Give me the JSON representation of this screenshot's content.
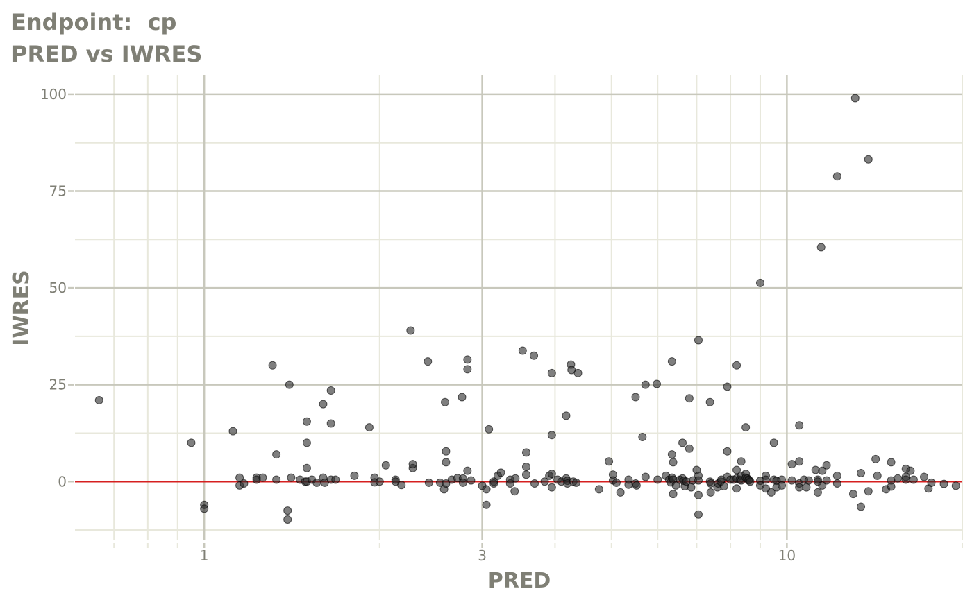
{
  "title": "Endpoint:  cp",
  "subtitle": "PRED vs IWRES",
  "chart_data": {
    "type": "scatter",
    "xlabel": "PRED",
    "ylabel": "IWRES",
    "x_scale": "log10",
    "xlim": [
      0.6,
      20
    ],
    "ylim": [
      -15,
      105
    ],
    "x_ticks": [
      1,
      3,
      10
    ],
    "x_tick_labels": [
      "1",
      "3",
      "10"
    ],
    "y_ticks": [
      0,
      25,
      50,
      75,
      100
    ],
    "y_tick_labels": [
      "0",
      "25",
      "50",
      "75",
      "100"
    ],
    "reference_line": {
      "y": 0,
      "color": "#d62020"
    },
    "grid": true,
    "colors": {
      "points": "#2a2a2a",
      "major_grid": "#c8c8bc",
      "minor_grid": "#e8e8dc",
      "text": "#7f7f75"
    },
    "points": [
      [
        0.66,
        21
      ],
      [
        0.95,
        10
      ],
      [
        1.0,
        -6
      ],
      [
        1.0,
        -7
      ],
      [
        1.12,
        13
      ],
      [
        1.15,
        1
      ],
      [
        1.15,
        -1
      ],
      [
        1.17,
        -0.5
      ],
      [
        1.23,
        1
      ],
      [
        1.23,
        0.5
      ],
      [
        1.26,
        1
      ],
      [
        1.31,
        30
      ],
      [
        1.33,
        7
      ],
      [
        1.33,
        0.5
      ],
      [
        1.39,
        -7.5
      ],
      [
        1.39,
        -9.8
      ],
      [
        1.4,
        25
      ],
      [
        1.41,
        1
      ],
      [
        1.46,
        0.5
      ],
      [
        1.49,
        0
      ],
      [
        1.5,
        15.5
      ],
      [
        1.5,
        10
      ],
      [
        1.5,
        3.5
      ],
      [
        1.5,
        0
      ],
      [
        1.53,
        0.5
      ],
      [
        1.56,
        -0.3
      ],
      [
        1.6,
        20
      ],
      [
        1.6,
        1
      ],
      [
        1.61,
        -0.3
      ],
      [
        1.65,
        23.5
      ],
      [
        1.65,
        15
      ],
      [
        1.65,
        0.5
      ],
      [
        1.68,
        0.5
      ],
      [
        1.81,
        1.5
      ],
      [
        1.92,
        14
      ],
      [
        1.96,
        1
      ],
      [
        1.96,
        -0.2
      ],
      [
        2.0,
        0
      ],
      [
        2.05,
        4.2
      ],
      [
        2.13,
        0.5
      ],
      [
        2.13,
        0
      ],
      [
        2.18,
        -0.9
      ],
      [
        2.26,
        39
      ],
      [
        2.28,
        3.5
      ],
      [
        2.28,
        4.5
      ],
      [
        2.42,
        31
      ],
      [
        2.43,
        -0.3
      ],
      [
        2.54,
        -0.3
      ],
      [
        2.58,
        -2
      ],
      [
        2.59,
        20.5
      ],
      [
        2.6,
        7.8
      ],
      [
        2.6,
        5
      ],
      [
        2.6,
        -0.5
      ],
      [
        2.66,
        0.5
      ],
      [
        2.72,
        0.9
      ],
      [
        2.77,
        21.8
      ],
      [
        2.78,
        0.8
      ],
      [
        2.78,
        -0.3
      ],
      [
        2.83,
        31.5
      ],
      [
        2.83,
        29
      ],
      [
        2.83,
        2.8
      ],
      [
        2.87,
        0.3
      ],
      [
        3.0,
        -1.1
      ],
      [
        3.05,
        -6
      ],
      [
        3.05,
        -2
      ],
      [
        3.08,
        13.5
      ],
      [
        3.14,
        0
      ],
      [
        3.14,
        -0.5
      ],
      [
        3.19,
        1.5
      ],
      [
        3.23,
        2.3
      ],
      [
        3.35,
        0.5
      ],
      [
        3.35,
        -0.5
      ],
      [
        3.41,
        -2.5
      ],
      [
        3.42,
        0.8
      ],
      [
        3.52,
        33.8
      ],
      [
        3.57,
        7.5
      ],
      [
        3.57,
        3.8
      ],
      [
        3.57,
        1.8
      ],
      [
        3.68,
        32.5
      ],
      [
        3.69,
        -0.5
      ],
      [
        3.84,
        0
      ],
      [
        3.91,
        1.5
      ],
      [
        3.95,
        28
      ],
      [
        3.95,
        12
      ],
      [
        3.95,
        2
      ],
      [
        3.95,
        -1.5
      ],
      [
        4.04,
        0.5
      ],
      [
        4.1,
        0
      ],
      [
        4.18,
        17
      ],
      [
        4.18,
        0.8
      ],
      [
        4.2,
        0.2
      ],
      [
        4.2,
        -0.5
      ],
      [
        4.26,
        30.2
      ],
      [
        4.27,
        28.8
      ],
      [
        4.3,
        0
      ],
      [
        4.35,
        -0.3
      ],
      [
        4.38,
        28
      ],
      [
        4.76,
        -2
      ],
      [
        4.95,
        5.2
      ],
      [
        5.03,
        1.8
      ],
      [
        5.03,
        0.3
      ],
      [
        5.1,
        -0.3
      ],
      [
        5.18,
        -2.8
      ],
      [
        5.35,
        0.5
      ],
      [
        5.35,
        -0.8
      ],
      [
        5.5,
        21.8
      ],
      [
        5.5,
        -0.5
      ],
      [
        5.52,
        -1
      ],
      [
        5.65,
        11.5
      ],
      [
        5.72,
        25
      ],
      [
        5.72,
        1.2
      ],
      [
        5.98,
        25.2
      ],
      [
        6.0,
        0.5
      ],
      [
        6.2,
        1.5
      ],
      [
        6.28,
        0.5
      ],
      [
        6.32,
        -0.2
      ],
      [
        6.35,
        31
      ],
      [
        6.35,
        7
      ],
      [
        6.35,
        1
      ],
      [
        6.38,
        5
      ],
      [
        6.38,
        0.5
      ],
      [
        6.38,
        -3.2
      ],
      [
        6.45,
        -1
      ],
      [
        6.55,
        0.5
      ],
      [
        6.62,
        10
      ],
      [
        6.62,
        0.8
      ],
      [
        6.65,
        0.2
      ],
      [
        6.68,
        -1.2
      ],
      [
        6.72,
        0
      ],
      [
        6.8,
        21.5
      ],
      [
        6.8,
        8.5
      ],
      [
        6.85,
        -1.5
      ],
      [
        6.9,
        0.3
      ],
      [
        7.0,
        3
      ],
      [
        7.05,
        36.5
      ],
      [
        7.05,
        1.5
      ],
      [
        7.05,
        0.3
      ],
      [
        7.05,
        -3.5
      ],
      [
        7.05,
        -8.5
      ],
      [
        7.38,
        20.5
      ],
      [
        7.38,
        0
      ],
      [
        7.4,
        -0.5
      ],
      [
        7.4,
        -2.8
      ],
      [
        7.6,
        -1.5
      ],
      [
        7.62,
        -0.5
      ],
      [
        7.7,
        0
      ],
      [
        7.72,
        0.5
      ],
      [
        7.8,
        -1.2
      ],
      [
        7.9,
        24.5
      ],
      [
        7.9,
        7.8
      ],
      [
        7.9,
        1.2
      ],
      [
        8.0,
        0.5
      ],
      [
        8.1,
        0.5
      ],
      [
        8.2,
        30
      ],
      [
        8.2,
        3
      ],
      [
        8.2,
        0.8
      ],
      [
        8.2,
        -1.8
      ],
      [
        8.3,
        0.5
      ],
      [
        8.35,
        5.2
      ],
      [
        8.35,
        1.5
      ],
      [
        8.35,
        0.3
      ],
      [
        8.5,
        14
      ],
      [
        8.5,
        2
      ],
      [
        8.5,
        1
      ],
      [
        8.55,
        0.8
      ],
      [
        8.6,
        0.5
      ],
      [
        8.6,
        0.3
      ],
      [
        8.65,
        0
      ],
      [
        9.0,
        51.3
      ],
      [
        9.0,
        0.2
      ],
      [
        9.0,
        -1
      ],
      [
        9.2,
        1.5
      ],
      [
        9.2,
        0.5
      ],
      [
        9.2,
        -1.8
      ],
      [
        9.4,
        -2.8
      ],
      [
        9.5,
        10
      ],
      [
        9.5,
        0.5
      ],
      [
        9.6,
        0.2
      ],
      [
        9.6,
        -1.5
      ],
      [
        9.8,
        0.5
      ],
      [
        9.8,
        -1
      ],
      [
        10.2,
        4.5
      ],
      [
        10.2,
        0.3
      ],
      [
        10.5,
        14.5
      ],
      [
        10.5,
        5.2
      ],
      [
        10.5,
        -0.5
      ],
      [
        10.5,
        -1.5
      ],
      [
        10.7,
        0.5
      ],
      [
        10.8,
        -1.5
      ],
      [
        10.9,
        0.3
      ],
      [
        11.2,
        3
      ],
      [
        11.3,
        -2.8
      ],
      [
        11.3,
        0.5
      ],
      [
        11.3,
        0
      ],
      [
        11.45,
        60.5
      ],
      [
        11.5,
        2.8
      ],
      [
        11.5,
        -1
      ],
      [
        11.7,
        4.2
      ],
      [
        11.7,
        0.3
      ],
      [
        12.2,
        78.8
      ],
      [
        12.2,
        1.5
      ],
      [
        12.2,
        -0.5
      ],
      [
        13.0,
        -3.2
      ],
      [
        13.1,
        99
      ],
      [
        13.4,
        -6.5
      ],
      [
        13.4,
        2.2
      ],
      [
        13.8,
        83.2
      ],
      [
        13.8,
        -2.5
      ],
      [
        14.2,
        5.8
      ],
      [
        14.3,
        1.5
      ],
      [
        14.8,
        -2
      ],
      [
        15.1,
        5
      ],
      [
        15.1,
        0.3
      ],
      [
        15.1,
        -1.3
      ],
      [
        15.5,
        0.8
      ],
      [
        16.0,
        3.3
      ],
      [
        16.0,
        1.2
      ],
      [
        16.0,
        0.5
      ],
      [
        16.3,
        2.8
      ],
      [
        16.5,
        0.5
      ],
      [
        17.2,
        1.2
      ],
      [
        17.5,
        -1.8
      ],
      [
        17.7,
        -0.3
      ],
      [
        18.6,
        -0.6
      ],
      [
        19.5,
        -1.1
      ]
    ]
  }
}
